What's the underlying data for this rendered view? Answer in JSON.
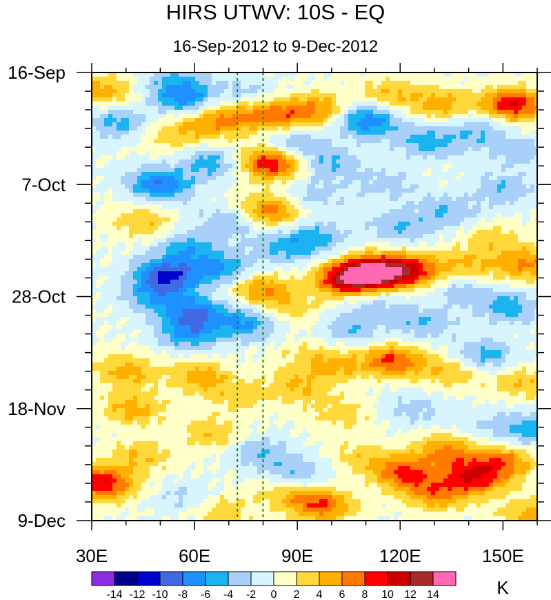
{
  "chart_data": {
    "type": "heatmap",
    "title": "HIRS UTWV: 10S - EQ",
    "subtitle": "16-Sep-2012 to 9-Dec-2012",
    "x_axis": {
      "range": [
        30,
        160
      ],
      "ticks": [
        30,
        60,
        90,
        120,
        150
      ],
      "tick_labels": [
        "30E",
        "60E",
        "90E",
        "120E",
        "150E"
      ]
    },
    "y_axis": {
      "range_days": [
        0,
        84
      ],
      "ticks": [
        0,
        21,
        42,
        63,
        84
      ],
      "tick_labels": [
        "16-Sep",
        "7-Oct",
        "28-Oct",
        "18-Nov",
        "9-Dec"
      ],
      "direction": "time increases downward"
    },
    "reference_lines": [
      {
        "style": "dashed",
        "color": "#1f8a1f",
        "longitude": 72.5
      },
      {
        "style": "dashed",
        "color": "#1f8a1f",
        "longitude": 80
      }
    ],
    "colorbar": {
      "unit": "K",
      "levels": [
        "-14",
        "-12",
        "-10",
        "-8",
        "-6",
        "-4",
        "-2",
        "0",
        "2",
        "4",
        "6",
        "8",
        "10",
        "12",
        "14"
      ],
      "colors": [
        "#8b2be2",
        "#00008b",
        "#0000cd",
        "#4169e1",
        "#1e90ff",
        "#1cb4f0",
        "#a8d0f8",
        "#d8f4fc",
        "#ffffc8",
        "#ffd83c",
        "#ffb000",
        "#ff7a00",
        "#ff0000",
        "#cc0000",
        "#a52a2a",
        "#ff69b4"
      ]
    },
    "anomaly_features": [
      {
        "lon": 33,
        "day": 3.5,
        "value": 5
      },
      {
        "lon": 33,
        "day": 77,
        "value": 10
      },
      {
        "lon": 38,
        "day": 9.5,
        "value": -5
      },
      {
        "lon": 40,
        "day": 56,
        "value": 5
      },
      {
        "lon": 42,
        "day": 63,
        "value": 5
      },
      {
        "lon": 44,
        "day": 72,
        "value": 4
      },
      {
        "lon": 45,
        "day": 28,
        "value": 4
      },
      {
        "lon": 48,
        "day": 42,
        "value": -5
      },
      {
        "lon": 50,
        "day": 21,
        "value": -8
      },
      {
        "lon": 52,
        "day": 12,
        "value": 3
      },
      {
        "lon": 52,
        "day": 38,
        "value": -10
      },
      {
        "lon": 55,
        "day": 2,
        "value": -4
      },
      {
        "lon": 57,
        "day": 5,
        "value": -6
      },
      {
        "lon": 58,
        "day": 33,
        "value": -5
      },
      {
        "lon": 58,
        "day": 49,
        "value": -6
      },
      {
        "lon": 58,
        "day": 80,
        "value": -3
      },
      {
        "lon": 60,
        "day": 45,
        "value": -7
      },
      {
        "lon": 62,
        "day": 57,
        "value": 5
      },
      {
        "lon": 63,
        "day": 10,
        "value": 4
      },
      {
        "lon": 65,
        "day": 17,
        "value": -5
      },
      {
        "lon": 66,
        "day": 68,
        "value": 4
      },
      {
        "lon": 67,
        "day": 82,
        "value": 4
      },
      {
        "lon": 68,
        "day": 37,
        "value": -6
      },
      {
        "lon": 70,
        "day": 28,
        "value": -4
      },
      {
        "lon": 71,
        "day": 8,
        "value": 5
      },
      {
        "lon": 73,
        "day": 61,
        "value": 3
      },
      {
        "lon": 75,
        "day": 4,
        "value": -3
      },
      {
        "lon": 75,
        "day": 47,
        "value": -6
      },
      {
        "lon": 78,
        "day": 71,
        "value": -4
      },
      {
        "lon": 79,
        "day": 40.5,
        "value": 6
      },
      {
        "lon": 82,
        "day": 17,
        "value": 10
      },
      {
        "lon": 82,
        "day": 26,
        "value": 7
      },
      {
        "lon": 84,
        "day": 8,
        "value": 7
      },
      {
        "lon": 85,
        "day": 33,
        "value": -4
      },
      {
        "lon": 86,
        "day": 79,
        "value": 3
      },
      {
        "lon": 88,
        "day": 44,
        "value": 3
      },
      {
        "lon": 89,
        "day": 13,
        "value": -4
      },
      {
        "lon": 90,
        "day": 59,
        "value": 4
      },
      {
        "lon": 90,
        "day": 75,
        "value": -4
      },
      {
        "lon": 92,
        "day": 53,
        "value": 2
      },
      {
        "lon": 95,
        "day": 23,
        "value": -3
      },
      {
        "lon": 95,
        "day": 31,
        "value": -5
      },
      {
        "lon": 97,
        "day": 7,
        "value": 6
      },
      {
        "lon": 97,
        "day": 81,
        "value": 8
      },
      {
        "lon": 100,
        "day": 17,
        "value": -4
      },
      {
        "lon": 101,
        "day": 55,
        "value": 4
      },
      {
        "lon": 103,
        "day": 64,
        "value": 3
      },
      {
        "lon": 104,
        "day": 39,
        "value": 10
      },
      {
        "lon": 106,
        "day": 48,
        "value": -4
      },
      {
        "lon": 108,
        "day": 72,
        "value": 3
      },
      {
        "lon": 110,
        "day": 9,
        "value": -8
      },
      {
        "lon": 112,
        "day": 37.5,
        "value": 14
      },
      {
        "lon": 113,
        "day": 43,
        "value": -3
      },
      {
        "lon": 116,
        "day": 21,
        "value": -3
      },
      {
        "lon": 117,
        "day": 4,
        "value": 4
      },
      {
        "lon": 118,
        "day": 54,
        "value": 8
      },
      {
        "lon": 120,
        "day": 29,
        "value": -4
      },
      {
        "lon": 121,
        "day": 75,
        "value": 8
      },
      {
        "lon": 123,
        "day": 37,
        "value": 9
      },
      {
        "lon": 124,
        "day": 63,
        "value": -3
      },
      {
        "lon": 127,
        "day": 47,
        "value": -4
      },
      {
        "lon": 128,
        "day": 13,
        "value": -5
      },
      {
        "lon": 130,
        "day": 79,
        "value": 6
      },
      {
        "lon": 132,
        "day": 6,
        "value": 5
      },
      {
        "lon": 133,
        "day": 71,
        "value": 6
      },
      {
        "lon": 134,
        "day": 26,
        "value": -4
      },
      {
        "lon": 135,
        "day": 56,
        "value": 4
      },
      {
        "lon": 138,
        "day": 41,
        "value": -3
      },
      {
        "lon": 140,
        "day": 36,
        "value": 4
      },
      {
        "lon": 141,
        "day": 76,
        "value": 9
      },
      {
        "lon": 143,
        "day": 11,
        "value": -4
      },
      {
        "lon": 145,
        "day": 53,
        "value": -5
      },
      {
        "lon": 146,
        "day": 66,
        "value": -2
      },
      {
        "lon": 148,
        "day": 31,
        "value": 3
      },
      {
        "lon": 150,
        "day": 22,
        "value": -4
      },
      {
        "lon": 150,
        "day": 73,
        "value": 7
      },
      {
        "lon": 152,
        "day": 44,
        "value": -5
      },
      {
        "lon": 153,
        "day": 6,
        "value": 10
      },
      {
        "lon": 155,
        "day": 15,
        "value": -3
      },
      {
        "lon": 156,
        "day": 58,
        "value": 4
      },
      {
        "lon": 157,
        "day": 36,
        "value": 6
      },
      {
        "lon": 158,
        "day": 83,
        "value": 5
      },
      {
        "lon": 159,
        "day": 67,
        "value": -5
      }
    ]
  }
}
